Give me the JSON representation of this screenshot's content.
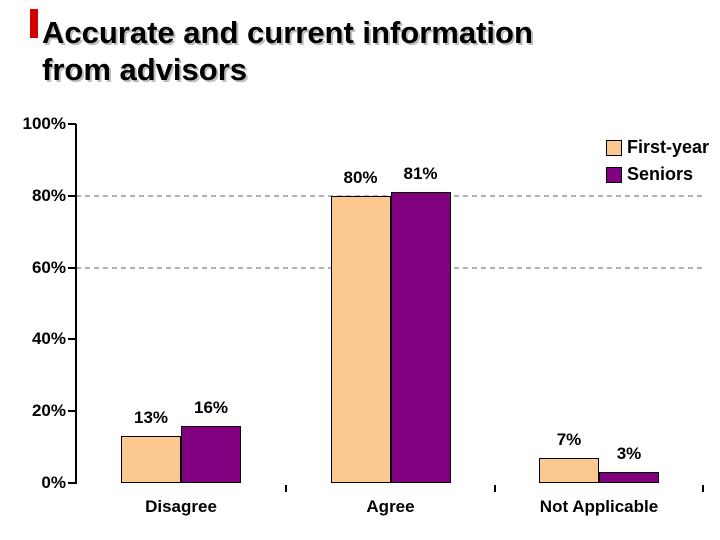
{
  "slide": {
    "title_line1": "Accurate and current information",
    "title_line2": "from advisors",
    "accent_color": "#d40000"
  },
  "chart_data": {
    "type": "bar",
    "title": "Accurate and current information from advisors",
    "categories": [
      "Disagree",
      "Agree",
      "Not Applicable"
    ],
    "series": [
      {
        "name": "First-year",
        "color": "#FCC892",
        "values": [
          13,
          80,
          7
        ],
        "labels": [
          "13%",
          "80%",
          "7%"
        ]
      },
      {
        "name": "Seniors",
        "color": "#800080",
        "values": [
          16,
          81,
          3
        ],
        "labels": [
          "16%",
          "81%",
          "3%"
        ]
      }
    ],
    "ylim": [
      0,
      100
    ],
    "y_tick_step": 20,
    "y_ticks": [
      "0%",
      "20%",
      "40%",
      "60%",
      "80%",
      "100%"
    ],
    "gridlines_at": [
      60,
      80
    ],
    "grid_color": "#b2b2b2",
    "legend_position": "top-right",
    "xlabel": "",
    "ylabel": ""
  }
}
